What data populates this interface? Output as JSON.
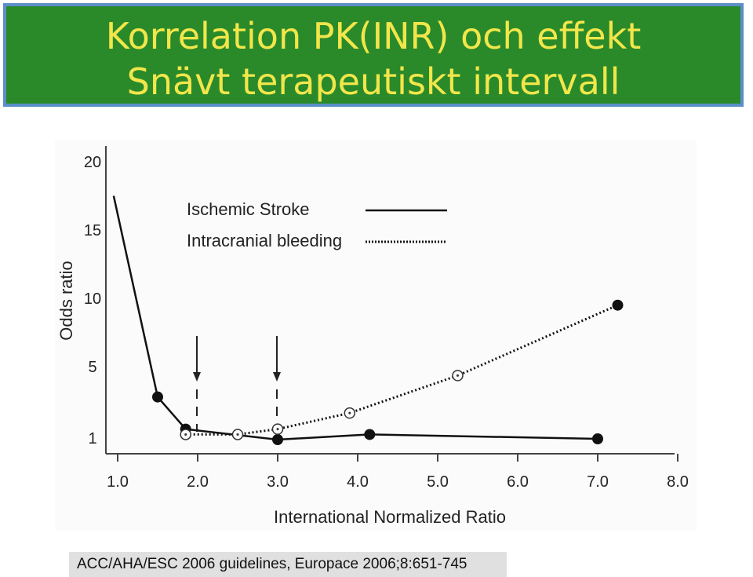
{
  "title": {
    "line1": "Korrelation PK(INR) och effekt",
    "line2": "Snävt terapeutiskt intervall"
  },
  "colors": {
    "banner_bg": "#2a8a2a",
    "banner_border": "#5b8fc9",
    "title_text": "#f2e64a"
  },
  "chart_data": {
    "type": "line",
    "xlabel": "International Normalized Ratio",
    "ylabel": "Odds ratio",
    "x_ticks": [
      "1.0",
      "2.0",
      "3.0",
      "4.0",
      "5.0",
      "6.0",
      "7.0",
      "8.0"
    ],
    "y_ticks": [
      "1",
      "5",
      "10",
      "15",
      "20"
    ],
    "xlim": [
      1.0,
      8.0
    ],
    "ylim": [
      0,
      20
    ],
    "grid": false,
    "legend_position": "top-left",
    "arrows_at_x": [
      2.0,
      3.0
    ],
    "series": [
      {
        "name": "Ischemic Stroke",
        "style": "solid",
        "marker": "filled-circle",
        "points": [
          [
            0.95,
            17.5
          ],
          [
            1.5,
            3.3
          ],
          [
            1.85,
            1.5
          ],
          [
            3.0,
            0.8
          ],
          [
            4.15,
            1.2
          ],
          [
            7.0,
            0.9
          ]
        ]
      },
      {
        "name": "Intracranial bleeding",
        "style": "dotted",
        "marker": "open-circle",
        "points": [
          [
            1.85,
            1.2
          ],
          [
            2.5,
            1.2
          ],
          [
            3.0,
            1.5
          ],
          [
            3.9,
            2.4
          ],
          [
            5.25,
            4.5
          ],
          [
            7.25,
            9.5
          ]
        ],
        "last_marker": "filled-circle"
      }
    ]
  },
  "citation": "ACC/AHA/ESC 2006 guidelines, Europace 2006;8:651-745"
}
